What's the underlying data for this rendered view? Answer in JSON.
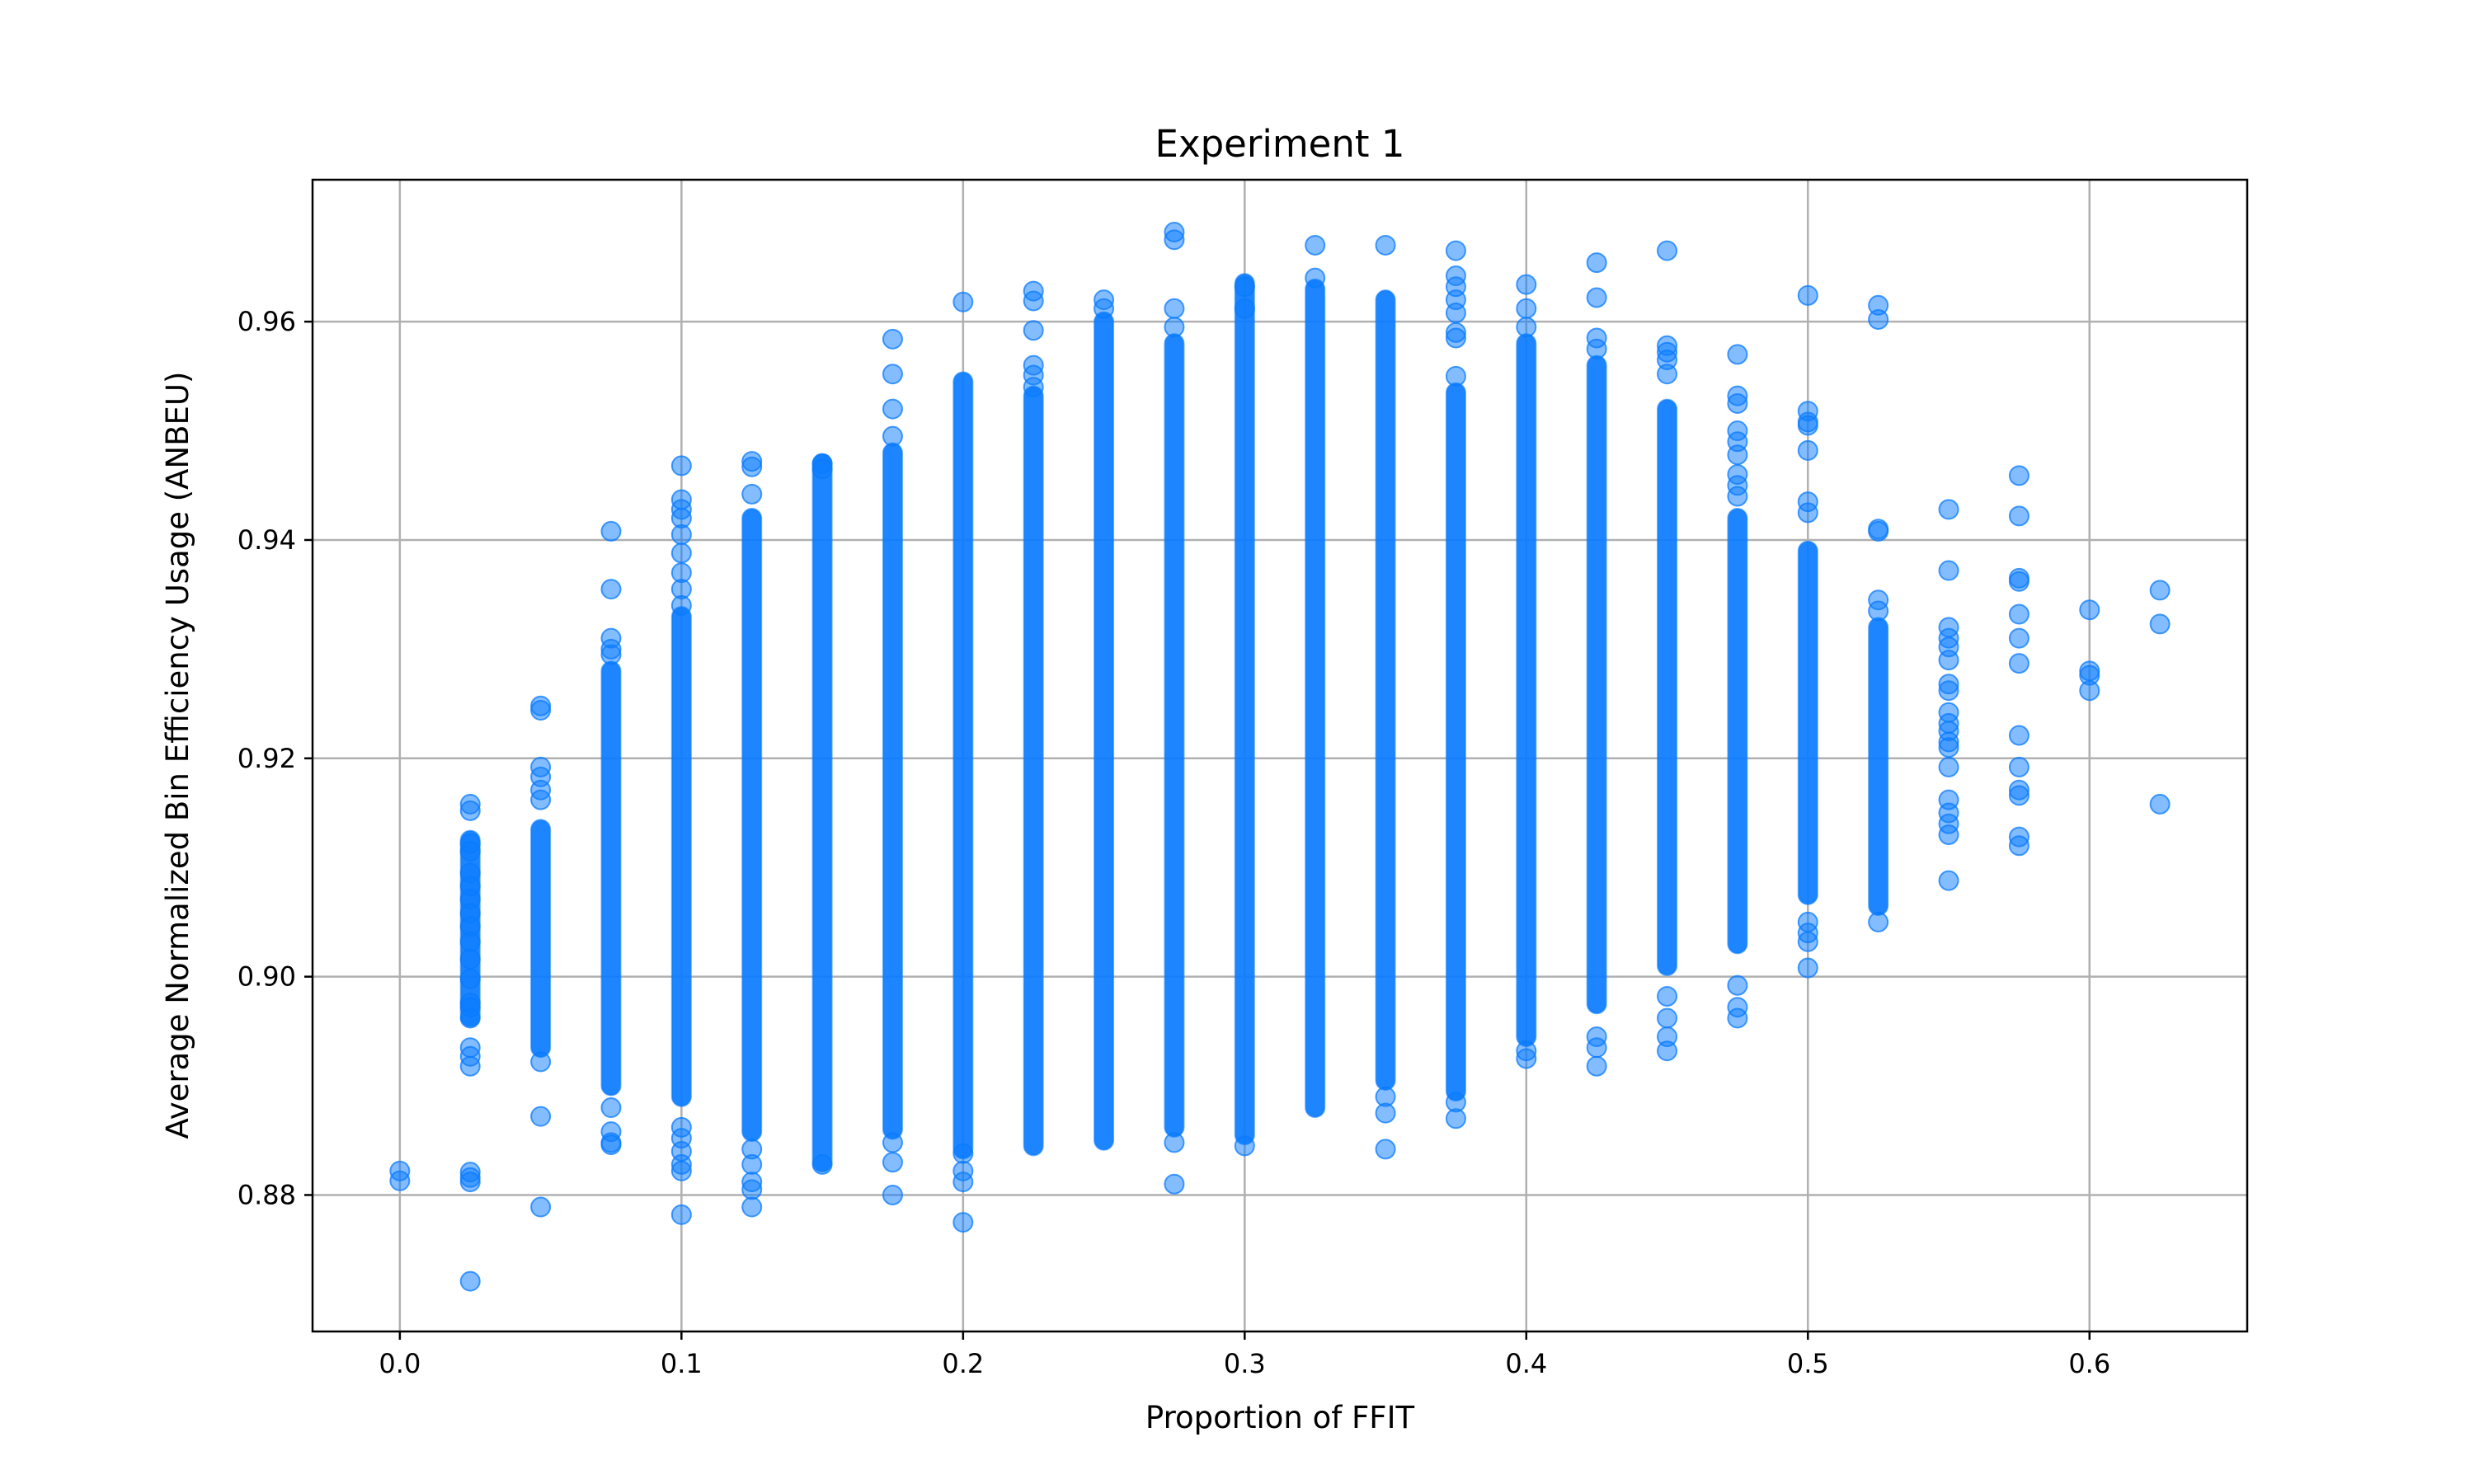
{
  "chart_data": {
    "type": "scatter",
    "title": "Experiment 1",
    "xlabel": "Proportion of FFIT",
    "ylabel": "Average Normalized Bin Efficiency Usage (ANBEU)",
    "xlim": [
      -0.031,
      0.656
    ],
    "ylim": [
      0.8675,
      0.973
    ],
    "xticks": [
      0.0,
      0.1,
      0.2,
      0.3,
      0.4,
      0.5,
      0.6
    ],
    "xtick_labels": [
      "0.0",
      "0.1",
      "0.2",
      "0.3",
      "0.4",
      "0.5",
      "0.6"
    ],
    "yticks": [
      0.88,
      0.9,
      0.92,
      0.94,
      0.96
    ],
    "ytick_labels": [
      "0.88",
      "0.90",
      "0.92",
      "0.94",
      "0.96"
    ],
    "grid": true,
    "color": "#0a7bff",
    "alpha": 0.5,
    "series": [
      {
        "columns": [
          {
            "x": 0.0,
            "band": null,
            "points": [
              0.8822,
              0.8813
            ]
          },
          {
            "x": 0.025,
            "band": [
              0.8963,
              0.9125
            ],
            "points": [
              0.9158,
              0.9152,
              0.9122,
              0.9115,
              0.9095,
              0.9083,
              0.9071,
              0.9058,
              0.9046,
              0.9032,
              0.9016,
              0.8998,
              0.8976,
              0.8972,
              0.8962,
              0.8935,
              0.8927,
              0.8918,
              0.8821,
              0.8816,
              0.8812,
              0.8721
            ]
          },
          {
            "x": 0.05,
            "band": [
              0.8935,
              0.9135
            ],
            "points": [
              0.9248,
              0.9244,
              0.9192,
              0.9183,
              0.9171,
              0.9162,
              0.8922,
              0.8872,
              0.8789
            ]
          },
          {
            "x": 0.075,
            "band": [
              0.89,
              0.928
            ],
            "points": [
              0.9408,
              0.9355,
              0.931,
              0.93,
              0.9295,
              0.888,
              0.8858,
              0.8848,
              0.8846
            ]
          },
          {
            "x": 0.1,
            "band": [
              0.889,
              0.933
            ],
            "points": [
              0.9468,
              0.9437,
              0.9428,
              0.942,
              0.9405,
              0.9388,
              0.937,
              0.9355,
              0.934,
              0.8862,
              0.8852,
              0.884,
              0.8828,
              0.8822,
              0.8782
            ]
          },
          {
            "x": 0.125,
            "band": [
              0.8858,
              0.942
            ],
            "points": [
              0.9472,
              0.9467,
              0.9442,
              0.8842,
              0.8828,
              0.8812,
              0.8805,
              0.8789
            ]
          },
          {
            "x": 0.15,
            "band": [
              0.883,
              0.947
            ],
            "points": [
              0.947,
              0.9465,
              0.8828
            ]
          },
          {
            "x": 0.175,
            "band": [
              0.886,
              0.948
            ],
            "points": [
              0.9584,
              0.9552,
              0.952,
              0.9495,
              0.8848,
              0.883,
              0.88
            ]
          },
          {
            "x": 0.2,
            "band": [
              0.8842,
              0.9545
            ],
            "points": [
              0.9618,
              0.8838,
              0.8822,
              0.8812,
              0.8775
            ]
          },
          {
            "x": 0.225,
            "band": [
              0.8845,
              0.9532
            ],
            "points": [
              0.9628,
              0.9619,
              0.9592,
              0.956,
              0.9551,
              0.954
            ]
          },
          {
            "x": 0.25,
            "band": [
              0.885,
              0.96
            ],
            "points": [
              0.962,
              0.9612
            ]
          },
          {
            "x": 0.275,
            "band": [
              0.8862,
              0.958
            ],
            "points": [
              0.9682,
              0.9675,
              0.9612,
              0.9595,
              0.8848,
              0.881
            ]
          },
          {
            "x": 0.3,
            "band": [
              0.8855,
              0.9635
            ],
            "points": [
              0.9632,
              0.9612,
              0.8845
            ]
          },
          {
            "x": 0.325,
            "band": [
              0.888,
              0.963
            ],
            "points": [
              0.967,
              0.964
            ]
          },
          {
            "x": 0.35,
            "band": [
              0.8905,
              0.962
            ],
            "points": [
              0.967,
              0.889,
              0.8875,
              0.8842
            ]
          },
          {
            "x": 0.375,
            "band": [
              0.8895,
              0.9535
            ],
            "points": [
              0.9665,
              0.9642,
              0.9632,
              0.962,
              0.9608,
              0.959,
              0.9585,
              0.955,
              0.8885,
              0.887
            ]
          },
          {
            "x": 0.4,
            "band": [
              0.8945,
              0.958
            ],
            "points": [
              0.9634,
              0.9612,
              0.9595,
              0.8932,
              0.8925
            ]
          },
          {
            "x": 0.425,
            "band": [
              0.8975,
              0.956
            ],
            "points": [
              0.9654,
              0.9622,
              0.9585,
              0.9575,
              0.8945,
              0.8935,
              0.8918
            ]
          },
          {
            "x": 0.45,
            "band": [
              0.901,
              0.952
            ],
            "points": [
              0.9665,
              0.9578,
              0.9572,
              0.9565,
              0.9552,
              0.8982,
              0.8962,
              0.8945,
              0.8932
            ]
          },
          {
            "x": 0.475,
            "band": [
              0.903,
              0.942
            ],
            "points": [
              0.957,
              0.9532,
              0.9525,
              0.95,
              0.949,
              0.9478,
              0.946,
              0.945,
              0.944,
              0.8992,
              0.8972,
              0.8962
            ]
          },
          {
            "x": 0.5,
            "band": [
              0.9075,
              0.939
            ],
            "points": [
              0.9624,
              0.9518,
              0.9508,
              0.9505,
              0.9482,
              0.9435,
              0.9425,
              0.905,
              0.904,
              0.9032,
              0.9008
            ]
          },
          {
            "x": 0.525,
            "band": [
              0.9065,
              0.932
            ],
            "points": [
              0.9615,
              0.9602,
              0.941,
              0.9408,
              0.9345,
              0.9335,
              0.905
            ]
          },
          {
            "x": 0.55,
            "band": null,
            "points": [
              0.9428,
              0.9372,
              0.932,
              0.931,
              0.9302,
              0.929,
              0.9268,
              0.9262,
              0.9242,
              0.9232,
              0.9225,
              0.9215,
              0.921,
              0.9192,
              0.9162,
              0.915,
              0.914,
              0.913,
              0.9088
            ]
          },
          {
            "x": 0.575,
            "band": null,
            "points": [
              0.9459,
              0.9422,
              0.9365,
              0.9362,
              0.9332,
              0.931,
              0.9287,
              0.9221,
              0.9192,
              0.9171,
              0.9166,
              0.9128,
              0.912
            ]
          },
          {
            "x": 0.6,
            "band": null,
            "points": [
              0.9336,
              0.928,
              0.9276,
              0.9262
            ]
          },
          {
            "x": 0.625,
            "band": null,
            "points": [
              0.9354,
              0.9323,
              0.9158
            ]
          }
        ]
      }
    ]
  }
}
